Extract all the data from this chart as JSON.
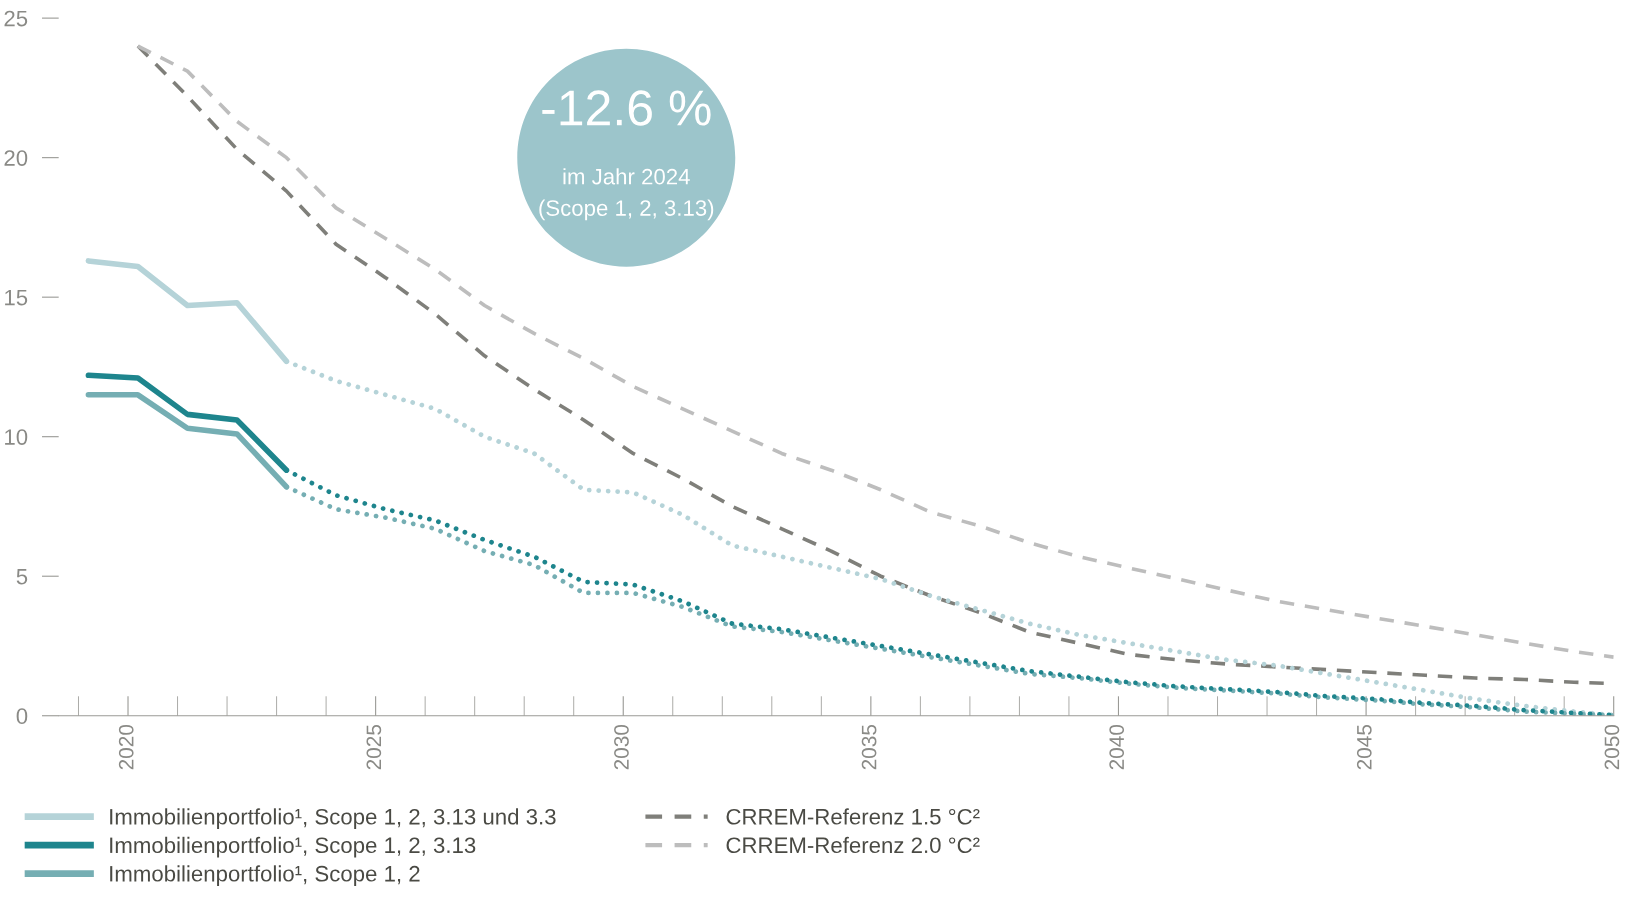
{
  "chart_data": {
    "type": "line",
    "xlim": [
      2018.6,
      2050
    ],
    "ylim": [
      0,
      25
    ],
    "xticks": [
      2020,
      2025,
      2030,
      2035,
      2040,
      2045,
      2050
    ],
    "yticks": [
      0,
      5,
      10,
      15,
      20,
      25
    ],
    "legend": "bottom",
    "annotations": [
      "-12.6 %",
      "im Jahr 2024",
      "(Scope 1, 2, 3.13)"
    ],
    "series": [
      {
        "name": "Immobilienportfolio¹, Scope 1, 2, 3.13 und 3.3",
        "color": "#b5d3d8",
        "line_style": "solid",
        "x": [
          2019.2,
          2020.2,
          2021.2,
          2022.2,
          2023.2
        ],
        "values": [
          16.3,
          16.1,
          14.7,
          14.8,
          12.7
        ]
      },
      {
        "name": "Immobilienportfolio¹, Scope 1, 2, 3.13",
        "color": "#1e858d",
        "line_style": "solid",
        "x": [
          2019.2,
          2020.2,
          2021.2,
          2022.2,
          2023.2
        ],
        "values": [
          12.2,
          12.1,
          10.8,
          10.6,
          8.8
        ]
      },
      {
        "name": "Immobilienportfolio¹, Scope 1, 2",
        "color": "#75aeb3",
        "line_style": "solid",
        "x": [
          2019.2,
          2020.2,
          2021.2,
          2022.2,
          2023.2
        ],
        "values": [
          11.5,
          11.5,
          10.3,
          10.1,
          8.2
        ]
      },
      {
        "name": "CRREM-Referenz 1.5 °C²",
        "color": "#7f7f7a",
        "line_style": "dashed",
        "x": [
          2020.2,
          2021.2,
          2022.2,
          2023.2,
          2024.2,
          2025.2,
          2026.2,
          2027.2,
          2028.2,
          2029.2,
          2030.2,
          2031.2,
          2032.2,
          2033.2,
          2034.2,
          2035.2,
          2036.2,
          2037.2,
          2038.2,
          2039.2,
          2040.2,
          2041.2,
          2042.2,
          2043.2,
          2044.2,
          2045.2,
          2046.2,
          2047.2,
          2048.2,
          2049.2,
          2050
        ],
        "values": [
          24.0,
          22.2,
          20.3,
          18.8,
          16.9,
          15.7,
          14.4,
          12.9,
          11.7,
          10.6,
          9.4,
          8.5,
          7.5,
          6.7,
          5.9,
          5.0,
          4.3,
          3.7,
          3.0,
          2.6,
          2.2,
          2.0,
          1.85,
          1.75,
          1.65,
          1.55,
          1.45,
          1.35,
          1.3,
          1.2,
          1.15
        ]
      },
      {
        "name": "CRREM-Referenz 2.0 °C²",
        "color": "#bdbdbd",
        "line_style": "dashed",
        "x": [
          2020.2,
          2021.2,
          2022.2,
          2023.2,
          2024.2,
          2025.2,
          2026.2,
          2027.2,
          2028.2,
          2029.2,
          2030.2,
          2031.2,
          2032.2,
          2033.2,
          2034.2,
          2035.2,
          2036.2,
          2037.2,
          2038.2,
          2039.2,
          2040.2,
          2041.2,
          2042.2,
          2043.2,
          2044.2,
          2045.2,
          2046.2,
          2047.2,
          2048.2,
          2049.2,
          2050
        ],
        "values": [
          24.0,
          23.1,
          21.3,
          20.0,
          18.2,
          17.1,
          16.0,
          14.7,
          13.7,
          12.8,
          11.8,
          11.0,
          10.2,
          9.4,
          8.8,
          8.1,
          7.3,
          6.8,
          6.2,
          5.7,
          5.3,
          4.9,
          4.5,
          4.1,
          3.8,
          3.5,
          3.2,
          2.9,
          2.6,
          2.3,
          2.1
        ]
      },
      {
        "color": "#b5d3d8",
        "line_style": "dotted",
        "x": [
          2023.2,
          2024.2,
          2025.2,
          2026.2,
          2027.2,
          2028.2,
          2029.2,
          2030.2,
          2031.2,
          2032.2,
          2033.2,
          2034.2,
          2035.2,
          2036.2,
          2037.2,
          2038.2,
          2039.2,
          2040.2,
          2041.2,
          2042.2,
          2043.2,
          2044.2,
          2045.2,
          2046.2,
          2047.2,
          2048.2,
          2049.2,
          2050
        ],
        "values": [
          12.7,
          12.0,
          11.5,
          11.0,
          10.0,
          9.4,
          8.1,
          8.0,
          7.2,
          6.1,
          5.7,
          5.3,
          4.9,
          4.3,
          3.8,
          3.3,
          2.9,
          2.6,
          2.3,
          2.0,
          1.8,
          1.5,
          1.2,
          0.9,
          0.6,
          0.35,
          0.15,
          0.02
        ]
      },
      {
        "color": "#75aeb3",
        "line_style": "dotted",
        "x": [
          2023.2,
          2024.2,
          2025.2,
          2026.2,
          2027.2,
          2028.2,
          2029.2,
          2030.2,
          2031.2,
          2032.2,
          2033.2,
          2034.2,
          2035.2,
          2036.2,
          2037.2,
          2038.2,
          2039.2,
          2040.2,
          2041.2,
          2042.2,
          2043.2,
          2044.2,
          2045.2,
          2046.2,
          2047.2,
          2048.2,
          2049.2,
          2050
        ],
        "values": [
          8.2,
          7.4,
          7.1,
          6.7,
          5.9,
          5.4,
          4.4,
          4.4,
          3.9,
          3.2,
          3.0,
          2.7,
          2.4,
          2.1,
          1.8,
          1.5,
          1.35,
          1.15,
          1.0,
          0.9,
          0.8,
          0.65,
          0.55,
          0.4,
          0.3,
          0.15,
          0.07,
          0.0
        ]
      },
      {
        "color": "#1e858d",
        "line_style": "dotted",
        "x": [
          2023.2,
          2024.2,
          2025.2,
          2026.2,
          2027.2,
          2028.2,
          2029.2,
          2030.2,
          2031.2,
          2032.2,
          2033.2,
          2034.2,
          2035.2,
          2036.2,
          2037.2,
          2038.2,
          2039.2,
          2040.2,
          2041.2,
          2042.2,
          2043.2,
          2044.2,
          2045.2,
          2046.2,
          2047.2,
          2048.2,
          2049.2,
          2050
        ],
        "values": [
          8.8,
          7.9,
          7.4,
          7.0,
          6.3,
          5.7,
          4.8,
          4.7,
          4.1,
          3.3,
          3.1,
          2.8,
          2.5,
          2.2,
          1.9,
          1.6,
          1.4,
          1.2,
          1.05,
          0.95,
          0.85,
          0.7,
          0.6,
          0.45,
          0.35,
          0.2,
          0.1,
          0.02
        ]
      }
    ]
  }
}
